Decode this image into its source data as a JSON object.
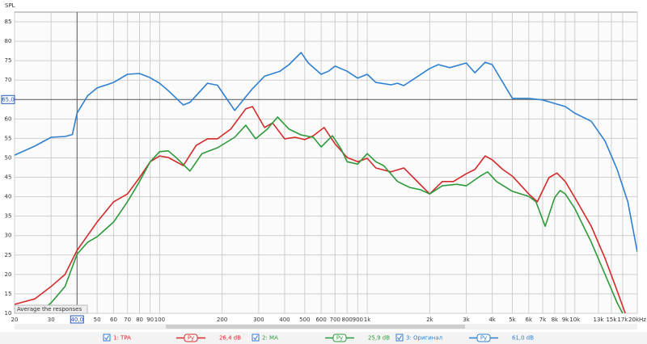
{
  "chart_data": {
    "type": "line",
    "y_label": "SPL",
    "xscale": "log",
    "grid": true,
    "xlim": [
      20,
      20000
    ],
    "ylim": [
      10,
      87.5
    ],
    "xticks": [
      20,
      30,
      50,
      60,
      70,
      80,
      90,
      100,
      200,
      300,
      400,
      500,
      600,
      700,
      800,
      900,
      {
        "value": 1000,
        "label": "1k"
      },
      {
        "value": 2000,
        "label": "2k"
      },
      {
        "value": 3000,
        "label": "3k"
      },
      {
        "value": 4000,
        "label": "4k"
      },
      {
        "value": 5000,
        "label": "5k"
      },
      {
        "value": 6000,
        "label": "6k"
      },
      {
        "value": 7000,
        "label": "7k"
      },
      {
        "value": 8000,
        "label": "8k"
      },
      {
        "value": 9000,
        "label": "9k"
      },
      {
        "value": 10000,
        "label": "10k"
      },
      {
        "value": 13000,
        "label": "13k"
      },
      {
        "value": 15000,
        "label": "15k"
      },
      {
        "value": 17000,
        "label": "17k"
      },
      {
        "value": 20000,
        "label": "20kHz"
      }
    ],
    "yticks": [
      10,
      15,
      20,
      25,
      30,
      35,
      40,
      45,
      50,
      55,
      60,
      70,
      75,
      80,
      85
    ],
    "cursor": {
      "x": {
        "value": 40,
        "label": "40,0"
      },
      "y": {
        "value": 65,
        "label": "65,0"
      }
    },
    "note": "Average the responses",
    "series": [
      {
        "name": "1: TPA",
        "color": "#d42a2a",
        "level": "26,4 dB",
        "button": "Ру",
        "x": [
          20,
          25,
          30,
          35,
          40,
          50,
          60,
          70,
          80,
          90,
          100,
          110,
          130,
          150,
          170,
          190,
          220,
          260,
          280,
          320,
          350,
          400,
          450,
          500,
          550,
          620,
          700,
          800,
          900,
          1000,
          1100,
          1300,
          1500,
          1700,
          2000,
          2300,
          2600,
          3000,
          3300,
          3700,
          4000,
          4500,
          5000,
          6000,
          6600,
          7500,
          8200,
          9000,
          10000,
          12000,
          14000,
          16000,
          17500
        ],
        "values": [
          12.3,
          13.7,
          16.9,
          20,
          26.2,
          33.5,
          38.7,
          40.7,
          44.9,
          49,
          50.5,
          50.1,
          48,
          53.2,
          54.9,
          54.9,
          57.4,
          62.6,
          63.2,
          57.8,
          59,
          54.9,
          55.3,
          54.7,
          55.7,
          57.8,
          53.6,
          50.1,
          49,
          49.9,
          47.4,
          46.4,
          47.4,
          44.5,
          40.7,
          43.9,
          43.9,
          45.9,
          47,
          50.5,
          49.5,
          47,
          45.3,
          40.7,
          38.7,
          44.9,
          46.1,
          43.9,
          39.8,
          32.4,
          24.1,
          15.8,
          10
        ]
      },
      {
        "name": "2: MA",
        "color": "#2e9a3a",
        "level": "25,9 dB",
        "button": "Ру",
        "x": [
          27,
          30,
          35,
          40,
          45,
          50,
          60,
          70,
          80,
          90,
          100,
          110,
          120,
          140,
          160,
          190,
          230,
          260,
          290,
          330,
          370,
          420,
          480,
          550,
          600,
          680,
          750,
          800,
          900,
          1000,
          1100,
          1200,
          1400,
          1600,
          1800,
          2000,
          2300,
          2700,
          3000,
          3500,
          3800,
          4200,
          5000,
          6000,
          6500,
          7200,
          8000,
          8500,
          9000,
          10000,
          12000,
          14000,
          16000,
          17000
        ],
        "values": [
          10.6,
          12.7,
          16.9,
          25.2,
          28.3,
          29.7,
          33.5,
          38.7,
          43.9,
          49,
          51.6,
          51.8,
          50.1,
          46.6,
          51.1,
          52.6,
          55.3,
          58.4,
          54.9,
          57.4,
          60.5,
          57.4,
          55.9,
          55.3,
          52.8,
          55.7,
          52.2,
          49,
          48.4,
          51.1,
          49,
          48,
          43.9,
          42.4,
          41.8,
          40.7,
          42.8,
          43.2,
          42.8,
          45.3,
          46.4,
          43.9,
          41.4,
          40.1,
          38.7,
          32.4,
          39.8,
          41.6,
          40.7,
          37,
          28.3,
          20,
          12.7,
          10
        ]
      },
      {
        "name": "3: Оригинал",
        "color": "#2f80d0",
        "level": "61,0 dB",
        "button": "Ру",
        "x": [
          20,
          25,
          30,
          35,
          38,
          40,
          45,
          50,
          60,
          70,
          80,
          90,
          100,
          110,
          130,
          140,
          170,
          190,
          230,
          260,
          280,
          320,
          380,
          420,
          480,
          520,
          600,
          650,
          700,
          800,
          900,
          1000,
          1100,
          1300,
          1400,
          1500,
          1700,
          2000,
          2200,
          2500,
          3000,
          3300,
          3700,
          4000,
          5000,
          6000,
          7000,
          8000,
          9000,
          10000,
          12000,
          14000,
          16000,
          18000,
          20000
        ],
        "values": [
          50.7,
          53,
          55.3,
          55.5,
          56,
          61.5,
          66,
          68,
          69.4,
          71.5,
          71.7,
          70.6,
          69.2,
          67.3,
          63.6,
          64.3,
          69.2,
          68.7,
          62.2,
          65.7,
          67.8,
          71,
          72.3,
          74,
          77.1,
          74.4,
          71.5,
          72.3,
          73.6,
          72.3,
          70.5,
          71.5,
          69.4,
          68.8,
          69.2,
          68.6,
          70.5,
          73,
          74,
          73.2,
          74.4,
          71.9,
          74.6,
          74,
          65.3,
          65.3,
          64.9,
          64,
          63.2,
          61.5,
          59.4,
          54.3,
          47,
          38.7,
          25.8
        ]
      }
    ]
  }
}
